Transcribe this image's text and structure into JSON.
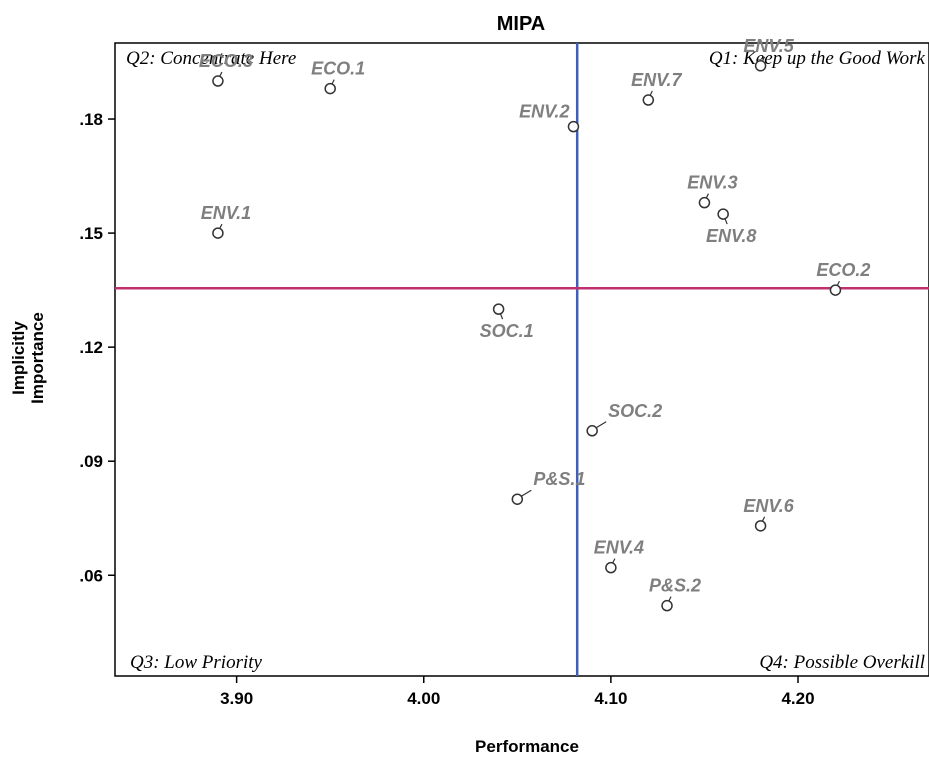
{
  "chart_data": {
    "type": "scatter",
    "title": "MIPA",
    "xlabel": "Performance",
    "ylabel_lines": [
      "Implicitly",
      "Importance"
    ],
    "xlim": [
      3.835,
      4.27
    ],
    "ylim": [
      0.0335,
      0.2
    ],
    "x_ticks": [
      3.9,
      4.0,
      4.1,
      4.2
    ],
    "x_tick_labels": [
      "3.90",
      "4.00",
      "4.10",
      "4.20"
    ],
    "y_ticks": [
      0.06,
      0.09,
      0.12,
      0.15,
      0.18
    ],
    "y_tick_labels": [
      ".06",
      ".09",
      ".12",
      ".15",
      ".18"
    ],
    "reference_lines": {
      "vertical_x": 4.082,
      "horizontal_y": 0.1355,
      "vertical_color": "#3f5fbf",
      "horizontal_color": "#c0306f"
    },
    "quadrants": {
      "q1": "Q1: Keep up the Good Work",
      "q2": "Q2: Concentrate Here",
      "q3": "Q3: Low Priority",
      "q4": "Q4: Possible Overkill"
    },
    "point_color": "#7f7f7f",
    "points": [
      {
        "label": "ECO.3",
        "x": 3.89,
        "y": 0.19,
        "pos": "above"
      },
      {
        "label": "ECO.1",
        "x": 3.95,
        "y": 0.188,
        "pos": "above"
      },
      {
        "label": "ENV.2",
        "x": 4.08,
        "y": 0.178,
        "pos": "left"
      },
      {
        "label": "ENV.7",
        "x": 4.12,
        "y": 0.185,
        "pos": "above"
      },
      {
        "label": "ENV.5",
        "x": 4.18,
        "y": 0.194,
        "pos": "above"
      },
      {
        "label": "ENV.1",
        "x": 3.89,
        "y": 0.15,
        "pos": "above"
      },
      {
        "label": "ENV.3",
        "x": 4.15,
        "y": 0.158,
        "pos": "above"
      },
      {
        "label": "ENV.8",
        "x": 4.16,
        "y": 0.155,
        "pos": "below"
      },
      {
        "label": "ECO.2",
        "x": 4.22,
        "y": 0.135,
        "pos": "above"
      },
      {
        "label": "SOC.1",
        "x": 4.04,
        "y": 0.13,
        "pos": "below"
      },
      {
        "label": "SOC.2",
        "x": 4.09,
        "y": 0.098,
        "pos": "above-right"
      },
      {
        "label": "P&S.1",
        "x": 4.05,
        "y": 0.08,
        "pos": "above-right"
      },
      {
        "label": "ENV.6",
        "x": 4.18,
        "y": 0.073,
        "pos": "above"
      },
      {
        "label": "ENV.4",
        "x": 4.1,
        "y": 0.062,
        "pos": "above"
      },
      {
        "label": "P&S.2",
        "x": 4.13,
        "y": 0.052,
        "pos": "above"
      }
    ]
  }
}
